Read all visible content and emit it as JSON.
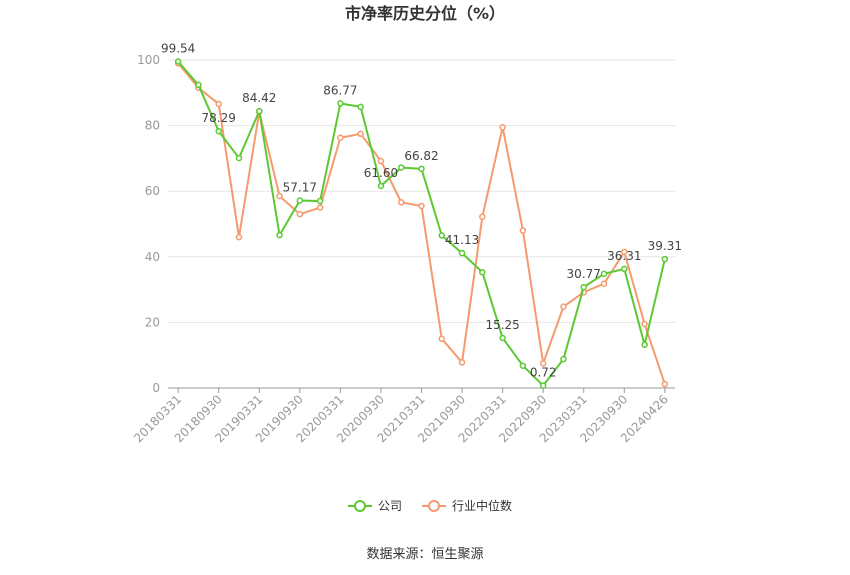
{
  "chart_data": {
    "type": "line",
    "title": "市净率历史分位（%）",
    "categories": [
      "20180331",
      null,
      "20180930",
      null,
      "20190331",
      null,
      "20190930",
      null,
      "20200331",
      null,
      "20200930",
      null,
      "20210331",
      null,
      "20210930",
      null,
      "20220331",
      null,
      "20220930",
      null,
      "20230331",
      null,
      "20230930",
      null,
      "20240426"
    ],
    "series": [
      {
        "name": "公司",
        "color": "#5cc832",
        "values": [
          99.54,
          92.4,
          78.29,
          70.1,
          84.42,
          46.6,
          57.17,
          57.0,
          86.77,
          85.7,
          61.6,
          67.2,
          66.82,
          46.5,
          41.13,
          35.3,
          15.25,
          6.8,
          0.72,
          8.8,
          30.77,
          34.8,
          36.31,
          13.2,
          39.31
        ],
        "value_labels": [
          "99.54",
          null,
          "78.29",
          null,
          "84.42",
          null,
          "57.17",
          null,
          "86.77",
          null,
          "61.60",
          null,
          "66.82",
          null,
          "41.13",
          null,
          "15.25",
          null,
          "0.72",
          null,
          "30.77",
          null,
          "36.31",
          null,
          "39.31"
        ]
      },
      {
        "name": "行业中位数",
        "color": "#f59a6e",
        "values": [
          99.0,
          91.5,
          86.6,
          46.0,
          84.2,
          58.5,
          53.0,
          55.0,
          76.3,
          77.5,
          69.2,
          56.6,
          55.5,
          15.0,
          7.8,
          52.2,
          79.5,
          48.0,
          7.5,
          24.8,
          29.2,
          31.8,
          41.5,
          19.5,
          1.2
        ]
      }
    ],
    "ylim": [
      0,
      100
    ],
    "yticks": [
      0,
      20,
      40,
      60,
      80,
      100
    ],
    "grid": true,
    "source": "数据来源：恒生聚源"
  }
}
